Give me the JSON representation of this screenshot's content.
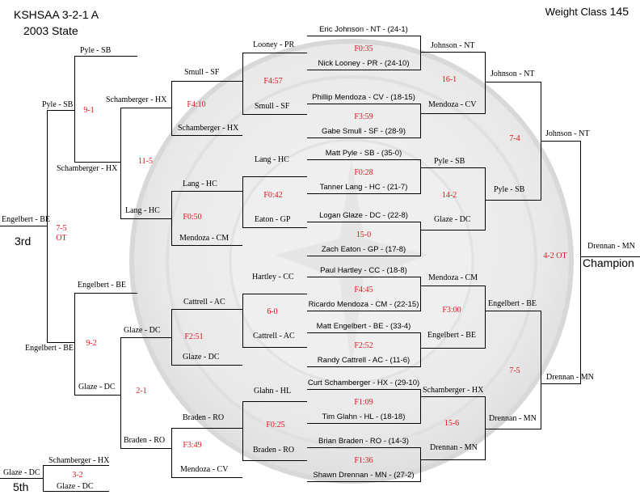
{
  "header": {
    "title_line1": "KSHSAA 3-2-1 A",
    "title_line2": "2003 State",
    "weight_class_label": "Weight Class",
    "weight_class_value": "145"
  },
  "places": {
    "third": "3rd",
    "champion": "Champion",
    "fifth": "5th"
  },
  "prelims": [
    {
      "name": "Eric Johnson - NT - (24-1)"
    },
    {
      "name": "Nick Looney - PR - (24-10)"
    },
    {
      "name": "Phillip Mendoza - CV - (18-15)"
    },
    {
      "name": "Gabe Smull - SF - (28-9)"
    },
    {
      "name": "Matt Pyle - SB - (35-0)"
    },
    {
      "name": "Tanner Lang - HC - (21-7)"
    },
    {
      "name": "Logan Glaze - DC - (22-8)"
    },
    {
      "name": "Zach Eaton - GP - (17-8)"
    },
    {
      "name": "Paul Hartley - CC - (18-8)"
    },
    {
      "name": "Ricardo Mendoza - CM - (22-15)"
    },
    {
      "name": "Matt Engelbert - BE - (33-4)"
    },
    {
      "name": "Randy Cattrell - AC - (11-6)"
    },
    {
      "name": "Curt Schamberger - HX - (29-10)"
    },
    {
      "name": "Tim Glahn - HL - (18-18)"
    },
    {
      "name": "Brian Braden - RO - (14-3)"
    },
    {
      "name": "Shawn Drennan - MN - (27-2)"
    }
  ],
  "prelim_scores": [
    "F0:35",
    "F3:59",
    "F0:28",
    "15-0",
    "F4:45",
    "F2:52",
    "F1:09",
    "F1:36"
  ],
  "quarters": {
    "names": [
      "Johnson - NT",
      "Mendoza - CV",
      "Pyle - SB",
      "Glaze - DC",
      "Mendoza - CM",
      "Engelbert - BE",
      "Schamberger - HX",
      "Drennan - MN"
    ],
    "scores": [
      "16-1",
      "14-2",
      "F3:00",
      "15-6"
    ]
  },
  "semis": {
    "names": [
      "Johnson - NT",
      "Pyle - SB",
      "Engelbert - BE",
      "Drennan - MN"
    ],
    "scores": [
      "7-4",
      "7-5"
    ]
  },
  "finals": {
    "names": [
      "Johnson - NT",
      "Drennan - MN"
    ],
    "score": "4-2 OT",
    "champion": "Drennan - MN"
  },
  "consolation": {
    "r1_names": [
      "Looney - PR",
      "Smull - SF",
      "Lang - HC",
      "Eaton - GP",
      "Hartley - CC",
      "Cattrell - AC",
      "Glahn - HL",
      "Braden - RO"
    ],
    "r1_scores": [
      "F4:57",
      "F0:42",
      "6-0",
      "F0:25"
    ],
    "r2_names": [
      "Smull - SF",
      "Schamberger - HX",
      "Lang - HC",
      "Mendoza - CM",
      "Cattrell - AC",
      "Glaze - DC",
      "Braden - RO",
      "Mendoza - CV"
    ],
    "r2_scores": [
      "F4:10",
      "F0:50",
      "F2:51",
      "F3:49"
    ],
    "r3_names": [
      "Schamberger - HX",
      "Lang - HC",
      "Glaze - DC",
      "Braden - RO"
    ],
    "r3_scores": [
      "11-5",
      "2-1"
    ],
    "r4_names": [
      "Pyle - SB",
      "Schamberger - HX",
      "Engelbert - BE",
      "Glaze - DC"
    ],
    "r4_scores": [
      "9-1",
      "9-2"
    ],
    "r5_names": [
      "Pyle - SB",
      "Engelbert - BE"
    ],
    "third_score": "7-5",
    "third_score_note": "OT",
    "third_winner": "Engelbert - BE",
    "fifth_names": [
      "Schamberger - HX",
      "Glaze - DC"
    ],
    "fifth_score": "3-2",
    "fifth_winner": "Glaze - DC"
  }
}
